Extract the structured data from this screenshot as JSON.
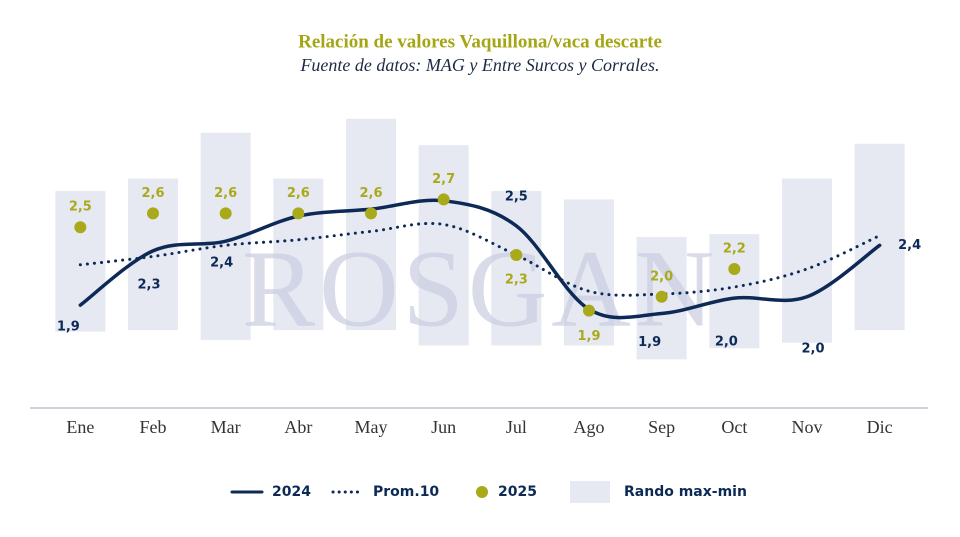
{
  "chart_data": {
    "type": "line",
    "title": "Relación de valores Vaquillona/vaca descarte",
    "subtitle": "Fuente de datos: MAG y Entre Surcos y Corrales.",
    "watermark": "ROSGAN",
    "categories": [
      "Ene",
      "Feb",
      "Mar",
      "Abr",
      "May",
      "Jun",
      "Jul",
      "Ago",
      "Sep",
      "Oct",
      "Nov",
      "Dic"
    ],
    "ylim": [
      1.2,
      3.3
    ],
    "range": {
      "name": "Rando max-min",
      "color": "#e6e8f2",
      "high": [
        2.76,
        2.85,
        3.18,
        2.85,
        3.28,
        3.09,
        2.76,
        2.7,
        2.43,
        2.45,
        2.85,
        3.1
      ],
      "low": [
        1.75,
        1.76,
        1.69,
        1.76,
        1.76,
        1.65,
        1.65,
        1.65,
        1.55,
        1.63,
        1.67,
        1.76
      ]
    },
    "series": [
      {
        "name": "2024",
        "color": "#0d2a57",
        "style": "solid",
        "values": [
          1.94,
          2.33,
          2.4,
          2.58,
          2.63,
          2.69,
          2.51,
          1.91,
          1.88,
          1.99,
          2.0,
          2.37
        ],
        "value_labels": [
          "1,9",
          "2,3",
          "2,4",
          null,
          null,
          null,
          "2,5",
          null,
          "1,9",
          "2,0",
          "2,0",
          "2,4"
        ]
      },
      {
        "name": "Prom.10",
        "color": "#0d2a57",
        "style": "dotted",
        "values": [
          2.23,
          2.29,
          2.37,
          2.41,
          2.47,
          2.52,
          2.3,
          2.04,
          2.02,
          2.07,
          2.2,
          2.44
        ]
      },
      {
        "name": "2025",
        "color": "#a9aa1a",
        "style": "dots",
        "values": [
          2.5,
          2.6,
          2.6,
          2.6,
          2.6,
          2.7,
          2.3,
          1.9,
          2.0,
          2.2,
          null,
          null
        ],
        "value_labels": [
          "2,5",
          "2,6",
          "2,6",
          "2,6",
          "2,6",
          "2,7",
          "2,3",
          "1,9",
          "2,0",
          "2,2",
          null,
          null
        ]
      }
    ]
  }
}
